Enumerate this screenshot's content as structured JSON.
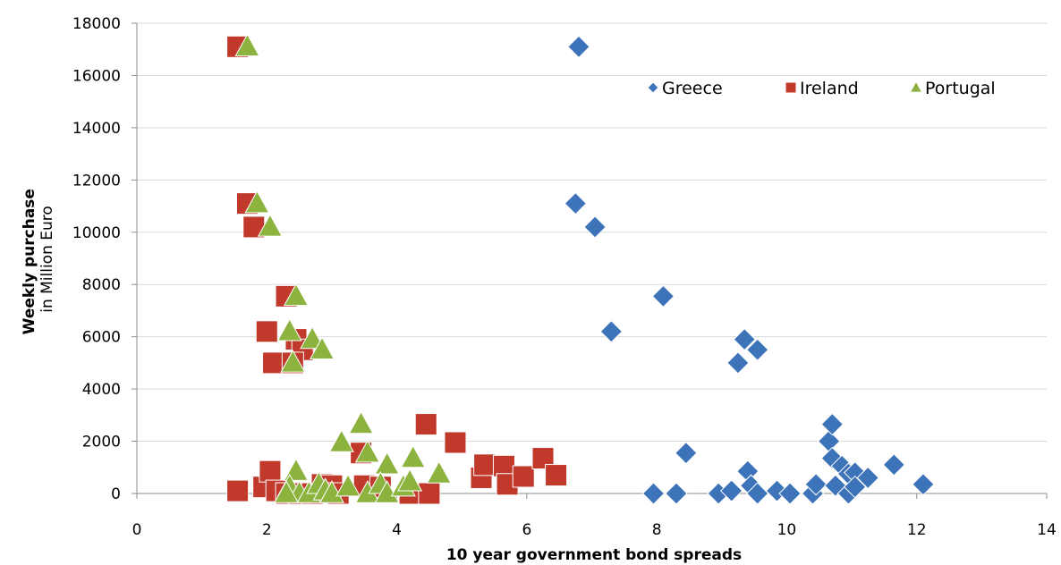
{
  "chart_data": {
    "type": "scatter",
    "xlabel": "10 year government bond spreads",
    "ylabel_bold": "Weekly purchase",
    "ylabel_sub": "in Million Euro",
    "xlim": [
      0,
      14
    ],
    "ylim": [
      0,
      18000
    ],
    "xticks": [
      0,
      2,
      4,
      6,
      8,
      10,
      12,
      14
    ],
    "yticks": [
      0,
      2000,
      4000,
      6000,
      8000,
      10000,
      12000,
      14000,
      16000,
      18000
    ],
    "grid": "horizontal",
    "legend": "top-right-inside",
    "series": [
      {
        "name": "Greece",
        "marker": "diamond",
        "color": "#3d73b9",
        "points": [
          [
            6.8,
            17100
          ],
          [
            6.75,
            11100
          ],
          [
            7.05,
            10200
          ],
          [
            8.1,
            7550
          ],
          [
            7.3,
            6200
          ],
          [
            9.35,
            5900
          ],
          [
            9.55,
            5500
          ],
          [
            9.25,
            5000
          ],
          [
            8.45,
            1550
          ],
          [
            7.95,
            0
          ],
          [
            8.3,
            0
          ],
          [
            8.95,
            0
          ],
          [
            9.15,
            100
          ],
          [
            9.4,
            850
          ],
          [
            9.45,
            300
          ],
          [
            9.55,
            0
          ],
          [
            9.85,
            100
          ],
          [
            10.05,
            0
          ],
          [
            10.4,
            0
          ],
          [
            10.45,
            350
          ],
          [
            10.65,
            2000
          ],
          [
            10.7,
            2650
          ],
          [
            10.7,
            1350
          ],
          [
            10.75,
            300
          ],
          [
            10.85,
            1050
          ],
          [
            10.95,
            750
          ],
          [
            10.95,
            0
          ],
          [
            11.05,
            800
          ],
          [
            11.05,
            250
          ],
          [
            11.25,
            600
          ],
          [
            11.65,
            1100
          ],
          [
            12.1,
            350
          ]
        ]
      },
      {
        "name": "Ireland",
        "marker": "square",
        "color": "#c0392b",
        "points": [
          [
            1.55,
            17100
          ],
          [
            1.7,
            11100
          ],
          [
            1.8,
            10200
          ],
          [
            2.3,
            7550
          ],
          [
            2.0,
            6200
          ],
          [
            2.45,
            5900
          ],
          [
            2.55,
            5500
          ],
          [
            2.1,
            5000
          ],
          [
            2.4,
            5000
          ],
          [
            1.55,
            100
          ],
          [
            1.95,
            250
          ],
          [
            2.05,
            850
          ],
          [
            2.15,
            100
          ],
          [
            2.3,
            0
          ],
          [
            2.5,
            0
          ],
          [
            2.7,
            0
          ],
          [
            2.85,
            350
          ],
          [
            3.0,
            300
          ],
          [
            3.1,
            0
          ],
          [
            3.45,
            1550
          ],
          [
            3.5,
            300
          ],
          [
            3.75,
            250
          ],
          [
            4.2,
            0
          ],
          [
            4.45,
            2650
          ],
          [
            4.5,
            0
          ],
          [
            4.9,
            1950
          ],
          [
            5.3,
            600
          ],
          [
            5.35,
            1100
          ],
          [
            5.65,
            1050
          ],
          [
            5.7,
            350
          ],
          [
            5.95,
            650
          ],
          [
            6.25,
            1350
          ],
          [
            6.45,
            700
          ]
        ]
      },
      {
        "name": "Portugal",
        "marker": "triangle",
        "color": "#8db33f",
        "points": [
          [
            1.7,
            17100
          ],
          [
            1.85,
            11100
          ],
          [
            2.05,
            10200
          ],
          [
            2.45,
            7550
          ],
          [
            2.35,
            6200
          ],
          [
            2.7,
            5900
          ],
          [
            2.85,
            5500
          ],
          [
            2.4,
            5000
          ],
          [
            3.45,
            2650
          ],
          [
            3.15,
            1950
          ],
          [
            3.55,
            1550
          ],
          [
            3.85,
            1100
          ],
          [
            4.25,
            1350
          ],
          [
            4.65,
            750
          ],
          [
            2.45,
            850
          ],
          [
            2.35,
            250
          ],
          [
            2.5,
            0
          ],
          [
            2.65,
            0
          ],
          [
            2.8,
            350
          ],
          [
            2.9,
            100
          ],
          [
            3.0,
            0
          ],
          [
            3.25,
            250
          ],
          [
            3.55,
            0
          ],
          [
            3.75,
            350
          ],
          [
            3.85,
            0
          ],
          [
            4.1,
            250
          ],
          [
            4.2,
            450
          ],
          [
            2.3,
            0
          ]
        ]
      }
    ]
  }
}
